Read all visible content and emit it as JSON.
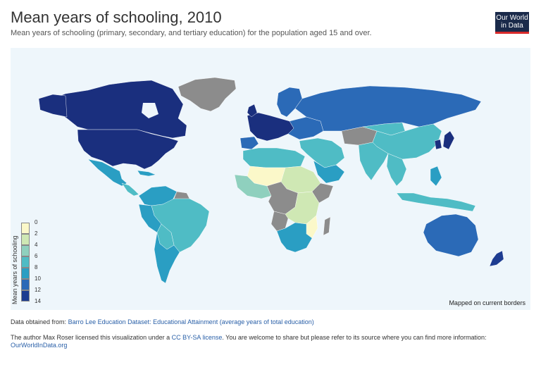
{
  "title": "Mean years of schooling, 2010",
  "subtitle": "Mean years of schooling (primary, secondary, and tertiary education) for the population aged 15 and over.",
  "logo": {
    "line1": "Our World",
    "line2": "in Data"
  },
  "map_note": "Mapped on current borders",
  "legend": {
    "title": "Mean years of schooling",
    "bins": [
      {
        "label": "0",
        "color": "#fbf8c9"
      },
      {
        "label": "2",
        "color": "#cfe8b4"
      },
      {
        "label": "4",
        "color": "#8fd0be"
      },
      {
        "label": "6",
        "color": "#4fbcc5"
      },
      {
        "label": "8",
        "color": "#2a9ec3"
      },
      {
        "label": "10",
        "color": "#2b6ab7"
      },
      {
        "label": "12",
        "color": "#1d3c91"
      },
      {
        "label": "14",
        "color": ""
      }
    ],
    "no_data_color": "#8c8c8c"
  },
  "footer": {
    "data_prefix": "Data obtained from:",
    "data_link": "Barro Lee Education Dataset: Educational Attainment (average years of total education)",
    "license_prefix": "The author Max Roser licensed this visualization under a",
    "license_link": "CC BY-SA license",
    "license_suffix": ". You are welcome to share but please refer to its source where you can find more information:",
    "site_link": "OurWorldInData.org"
  }
}
